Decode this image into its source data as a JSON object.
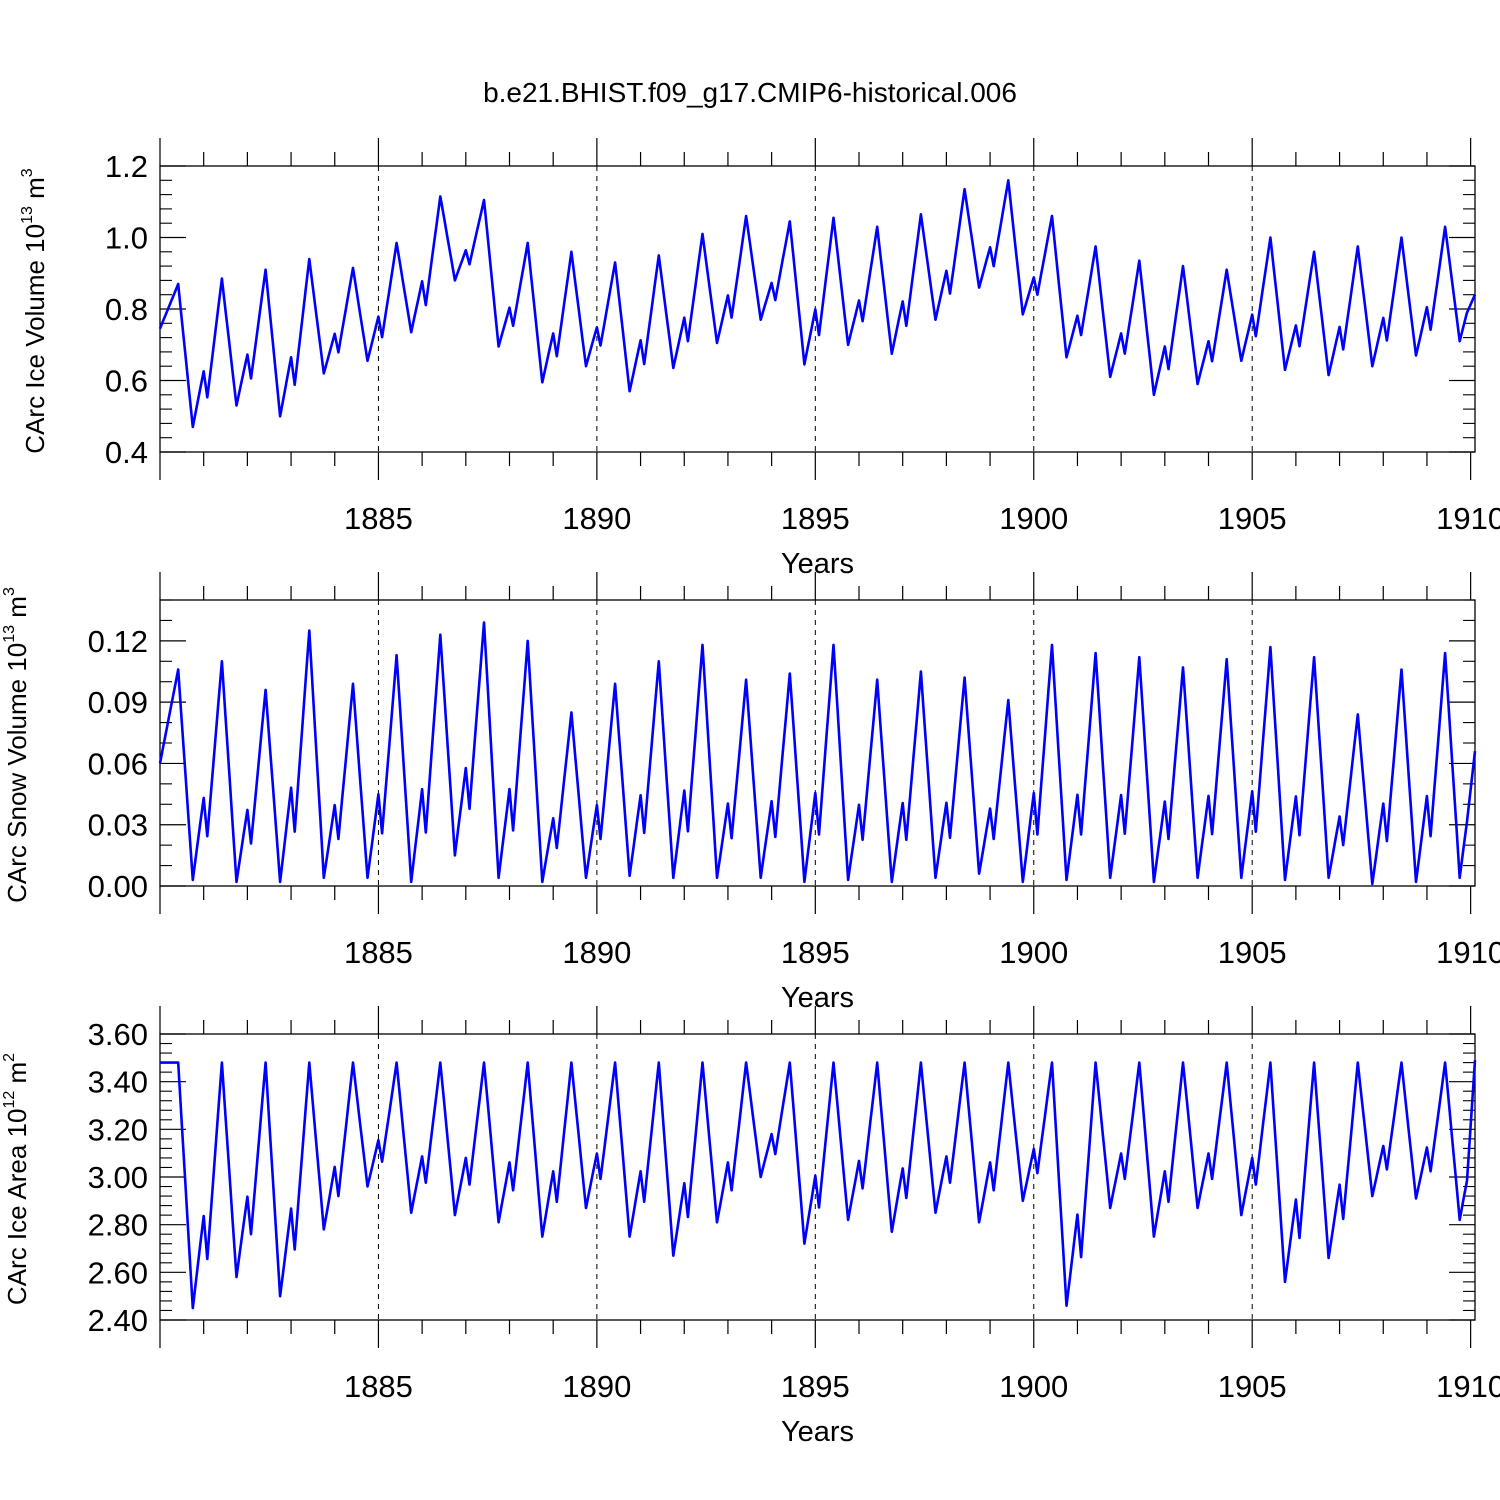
{
  "title": "b.e21.BHIST.f09_g17.CMIP6-historical.006",
  "colors": {
    "series": "#0000ff",
    "axis": "#000000",
    "grid": "#000000"
  },
  "chart_data": [
    {
      "type": "line",
      "name": "ice-volume",
      "ylabel": "CArc Ice Volume 10",
      "ylabel_exp": "13",
      "ylabel_unit": " m",
      "ylabel_unit_exp": "3",
      "xlabel": "Years",
      "xlim": [
        1880.0,
        1910.1
      ],
      "ylim": [
        0.4,
        1.2
      ],
      "xticks": [
        1885,
        1890,
        1895,
        1900,
        1905,
        1910
      ],
      "xtick_labels": [
        "1885",
        "1890",
        "1895",
        "1900",
        "1905",
        "1910"
      ],
      "yticks": [
        0.4,
        0.6,
        0.8,
        1.0,
        1.2
      ],
      "ytick_labels": [
        "0.4",
        "0.6",
        "0.8",
        "1.0",
        "1.2"
      ],
      "ymin_minor": 0.04,
      "series": [
        {
          "name": "CArc Ice Volume",
          "start_year": 1880.0,
          "step": 0.08333,
          "peaks": [
            0.87,
            0.885,
            0.91,
            0.94,
            0.915,
            0.985,
            1.115,
            1.105,
            0.985,
            0.96,
            0.93,
            0.95,
            1.01,
            1.06,
            1.045,
            1.055,
            1.03,
            1.065,
            1.135,
            1.16,
            1.06,
            0.975,
            0.935,
            0.92,
            0.91,
            1.0,
            0.96,
            0.975,
            1.0,
            1.03
          ],
          "troughs": [
            0.47,
            0.53,
            0.5,
            0.62,
            0.655,
            0.735,
            0.88,
            0.695,
            0.595,
            0.64,
            0.57,
            0.635,
            0.705,
            0.77,
            0.645,
            0.7,
            0.675,
            0.77,
            0.86,
            0.785,
            0.665,
            0.61,
            0.56,
            0.59,
            0.655,
            0.63,
            0.615,
            0.64,
            0.67,
            0.71
          ],
          "start_value": 0.745,
          "end_value": 0.84
        }
      ]
    },
    {
      "type": "line",
      "name": "snow-volume",
      "ylabel": "CArc Snow Volume 10",
      "ylabel_exp": "13",
      "ylabel_unit": " m",
      "ylabel_unit_exp": "3",
      "xlabel": "Years",
      "xlim": [
        1880.0,
        1910.1
      ],
      "ylim": [
        0.0,
        0.14
      ],
      "xticks": [
        1885,
        1890,
        1895,
        1900,
        1905,
        1910
      ],
      "xtick_labels": [
        "1885",
        "1890",
        "1895",
        "1900",
        "1905",
        "1910"
      ],
      "yticks": [
        0.0,
        0.03,
        0.06,
        0.09,
        0.12
      ],
      "ytick_labels": [
        "0.00",
        "0.03",
        "0.06",
        "0.09",
        "0.12"
      ],
      "ymin_minor": 0.01,
      "series": [
        {
          "name": "CArc Snow Volume",
          "start_year": 1880.0,
          "step": 0.08333,
          "peaks": [
            0.106,
            0.11,
            0.096,
            0.125,
            0.099,
            0.113,
            0.123,
            0.129,
            0.12,
            0.085,
            0.099,
            0.11,
            0.118,
            0.101,
            0.104,
            0.118,
            0.101,
            0.105,
            0.102,
            0.091,
            0.118,
            0.114,
            0.112,
            0.107,
            0.111,
            0.117,
            0.112,
            0.084,
            0.106,
            0.114
          ],
          "troughs": [
            0.003,
            0.002,
            0.002,
            0.004,
            0.004,
            0.002,
            0.015,
            0.004,
            0.002,
            0.004,
            0.005,
            0.004,
            0.004,
            0.004,
            0.002,
            0.003,
            0.002,
            0.004,
            0.006,
            0.002,
            0.003,
            0.004,
            0.002,
            0.004,
            0.004,
            0.003,
            0.004,
            0.001,
            0.002,
            0.004
          ],
          "start_value": 0.06,
          "end_value": 0.066
        }
      ]
    },
    {
      "type": "line",
      "name": "ice-area",
      "ylabel": "CArc Ice Area 10",
      "ylabel_exp": "12",
      "ylabel_unit": " m",
      "ylabel_unit_exp": "2",
      "xlabel": "Years",
      "xlim": [
        1880.0,
        1910.1
      ],
      "ylim": [
        2.4,
        3.6
      ],
      "xticks": [
        1885,
        1890,
        1895,
        1900,
        1905,
        1910
      ],
      "xtick_labels": [
        "1885",
        "1890",
        "1895",
        "1900",
        "1905",
        "1910"
      ],
      "yticks": [
        2.4,
        2.6,
        2.8,
        3.0,
        3.2,
        3.4,
        3.6
      ],
      "ytick_labels": [
        "2.40",
        "2.60",
        "2.80",
        "3.00",
        "3.20",
        "3.40",
        "3.60"
      ],
      "ymin_minor": 0.04,
      "series": [
        {
          "name": "CArc Ice Area",
          "start_year": 1880.0,
          "step": 0.08333,
          "peaks": [
            3.48,
            3.48,
            3.48,
            3.48,
            3.48,
            3.48,
            3.48,
            3.48,
            3.48,
            3.48,
            3.48,
            3.48,
            3.48,
            3.48,
            3.48,
            3.48,
            3.48,
            3.48,
            3.48,
            3.48,
            3.48,
            3.48,
            3.48,
            3.48,
            3.48,
            3.48,
            3.48,
            3.48,
            3.48,
            3.48
          ],
          "troughs": [
            2.45,
            2.58,
            2.5,
            2.78,
            2.96,
            2.85,
            2.84,
            2.81,
            2.75,
            2.87,
            2.75,
            2.67,
            2.81,
            3.0,
            2.72,
            2.82,
            2.77,
            2.85,
            2.81,
            2.9,
            2.46,
            2.87,
            2.75,
            2.87,
            2.84,
            2.56,
            2.66,
            2.92,
            2.91,
            2.82
          ],
          "start_value": 3.48,
          "end_value": 3.49
        }
      ]
    }
  ]
}
